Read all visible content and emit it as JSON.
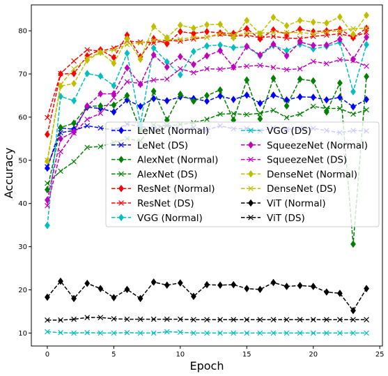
{
  "chart_data": {
    "type": "line",
    "title": "",
    "xlabel": "Epoch",
    "ylabel": "Accuracy",
    "xlim": [
      -1.2,
      25.2
    ],
    "ylim": [
      7,
      86
    ],
    "xticks": [
      0,
      5,
      10,
      15,
      20,
      25
    ],
    "yticks": [
      10,
      20,
      30,
      40,
      50,
      60,
      70,
      80
    ],
    "grid": false,
    "legend": {
      "placement": "center-right",
      "columns": 2
    },
    "x": [
      0,
      1,
      2,
      3,
      4,
      5,
      6,
      7,
      8,
      9,
      10,
      11,
      12,
      13,
      14,
      15,
      16,
      17,
      18,
      19,
      20,
      21,
      22,
      23,
      24
    ],
    "series": [
      {
        "name": "LeNet (Normal)",
        "color": "#0000ff",
        "marker": "diamond",
        "linestyle": "dashed",
        "values": [
          48.2,
          57.5,
          57.2,
          62.3,
          62.0,
          61.2,
          64.0,
          62.5,
          64.3,
          63.8,
          64.7,
          64.3,
          63.7,
          64.9,
          64.1,
          65.1,
          63.2,
          65.1,
          64.0,
          64.7,
          64.6,
          64.0,
          64.6,
          62.4,
          64.1
        ]
      },
      {
        "name": "LeNet (DS)",
        "color": "#0000ff",
        "marker": "x",
        "linestyle": "dashed",
        "values": [
          48.5,
          56.4,
          56.9,
          58.0,
          57.5,
          57.0,
          58.4,
          57.8,
          57.4,
          58.1,
          57.1,
          57.6,
          57.0,
          58.0,
          57.3,
          57.4,
          56.8,
          57.5,
          57.2,
          57.3,
          57.4,
          56.9,
          56.4,
          56.9,
          56.8
        ]
      },
      {
        "name": "AlexNet (Normal)",
        "color": "#008000",
        "marker": "diamond",
        "linestyle": "dashed",
        "values": [
          43.2,
          57.6,
          58.6,
          62.5,
          62.6,
          62.8,
          65.0,
          57.0,
          66.0,
          59.3,
          65.3,
          63.7,
          65.0,
          66.3,
          59.3,
          68.6,
          59.6,
          69.0,
          62.6,
          68.8,
          68.4,
          61.2,
          67.9,
          30.6,
          69.4
        ]
      },
      {
        "name": "AlexNet (DS)",
        "color": "#008000",
        "marker": "x",
        "linestyle": "dashed",
        "values": [
          44.7,
          47.5,
          49.7,
          53.0,
          53.2,
          54.1,
          55.0,
          54.5,
          58.2,
          58.0,
          58.3,
          58.7,
          59.5,
          60.7,
          60.8,
          60.6,
          60.9,
          61.6,
          59.9,
          60.7,
          62.5,
          62.0,
          62.0,
          60.7,
          61.7
        ]
      },
      {
        "name": "ResNet (Normal)",
        "color": "#ff0000",
        "marker": "diamond",
        "linestyle": "dashed",
        "values": [
          56.0,
          70.0,
          70.1,
          74.2,
          75.6,
          73.8,
          79.0,
          74.0,
          78.2,
          77.0,
          79.8,
          79.4,
          79.8,
          79.5,
          79.4,
          80.5,
          78.1,
          80.2,
          79.2,
          80.4,
          79.8,
          80.0,
          80.4,
          78.4,
          80.6
        ]
      },
      {
        "name": "ResNet (DS)",
        "color": "#ff0000",
        "marker": "x",
        "linestyle": "dashed",
        "values": [
          59.9,
          70.1,
          73.0,
          75.6,
          75.3,
          76.0,
          77.6,
          77.4,
          77.2,
          77.8,
          77.6,
          78.1,
          78.5,
          79.2,
          78.7,
          79.0,
          78.4,
          78.7,
          78.3,
          78.2,
          78.7,
          79.0,
          79.3,
          78.6,
          79.6
        ]
      },
      {
        "name": "VGG (Normal)",
        "color": "#00bfbf",
        "marker": "diamond",
        "linestyle": "dashed",
        "values": [
          34.9,
          64.8,
          63.8,
          70.1,
          69.5,
          67.3,
          74.8,
          58.3,
          76.0,
          72.8,
          69.8,
          75.2,
          76.5,
          76.7,
          76.1,
          76.3,
          74.2,
          76.6,
          75.4,
          76.9,
          75.8,
          76.4,
          77.3,
          65.9,
          76.8
        ]
      },
      {
        "name": "VGG (DS)",
        "color": "#00bfbf",
        "marker": "x",
        "linestyle": "dashed",
        "values": [
          10.3,
          10.1,
          10.0,
          10.1,
          10.0,
          10.0,
          10.1,
          10.0,
          10.0,
          10.3,
          10.2,
          10.0,
          10.0,
          10.0,
          10.0,
          10.0,
          10.0,
          10.0,
          10.0,
          10.0,
          10.0,
          10.0,
          10.0,
          10.0,
          10.0
        ]
      },
      {
        "name": "SqueezeNet (Normal)",
        "color": "#bf00bf",
        "marker": "diamond",
        "linestyle": "dashed",
        "values": [
          40.8,
          55.0,
          56.6,
          62.6,
          65.4,
          65.4,
          71.4,
          67.6,
          74.4,
          71.6,
          74.0,
          72.2,
          74.2,
          75.4,
          71.6,
          76.4,
          74.4,
          76.9,
          74.2,
          77.4,
          76.6,
          76.7,
          78.0,
          73.4,
          78.5
        ]
      },
      {
        "name": "SqueezeNet (DS)",
        "color": "#bf00bf",
        "marker": "x",
        "linestyle": "dashed",
        "values": [
          39.5,
          52.0,
          56.3,
          59.5,
          60.9,
          64.5,
          68.2,
          67.8,
          68.6,
          68.8,
          71.2,
          70.3,
          71.2,
          71.1,
          71.5,
          71.8,
          72.0,
          71.5,
          71.0,
          71.2,
          72.9,
          72.4,
          73.3,
          73.1,
          71.8
        ]
      },
      {
        "name": "DenseNet (Normal)",
        "color": "#bfbf00",
        "marker": "diamond",
        "linestyle": "dashed",
        "values": [
          49.8,
          67.2,
          67.8,
          73.2,
          75.0,
          72.5,
          78.1,
          73.4,
          81.0,
          78.4,
          81.3,
          80.6,
          81.4,
          81.5,
          78.4,
          82.4,
          79.3,
          83.1,
          81.2,
          82.4,
          82.0,
          81.8,
          83.2,
          79.2,
          83.6
        ]
      },
      {
        "name": "DenseNet (DS)",
        "color": "#bfbf00",
        "marker": "x",
        "linestyle": "dashed",
        "values": [
          50.0,
          67.5,
          71.2,
          73.6,
          75.0,
          75.6,
          76.8,
          77.2,
          77.8,
          77.9,
          78.0,
          78.5,
          78.5,
          79.4,
          78.9,
          79.4,
          79.5,
          79.6,
          79.6,
          79.6,
          79.3,
          79.8,
          80.0,
          80.5,
          80.6
        ]
      },
      {
        "name": "ViT (Normal)",
        "color": "#000000",
        "marker": "diamond",
        "linestyle": "dashed",
        "values": [
          18.3,
          22.0,
          18.0,
          21.5,
          20.3,
          18.2,
          20.1,
          18.0,
          21.8,
          21.1,
          21.6,
          18.5,
          21.2,
          21.1,
          21.2,
          20.3,
          20.1,
          21.7,
          20.8,
          21.0,
          20.8,
          19.5,
          19.2,
          15.2,
          20.3
        ]
      },
      {
        "name": "ViT (DS)",
        "color": "#000000",
        "marker": "x",
        "linestyle": "dashed",
        "values": [
          13.0,
          13.0,
          13.2,
          13.6,
          13.6,
          13.3,
          13.2,
          13.2,
          13.2,
          13.2,
          13.2,
          13.1,
          13.1,
          13.1,
          13.1,
          13.1,
          13.1,
          13.1,
          13.1,
          13.1,
          13.1,
          13.1,
          13.1,
          13.1,
          13.1
        ]
      }
    ]
  }
}
